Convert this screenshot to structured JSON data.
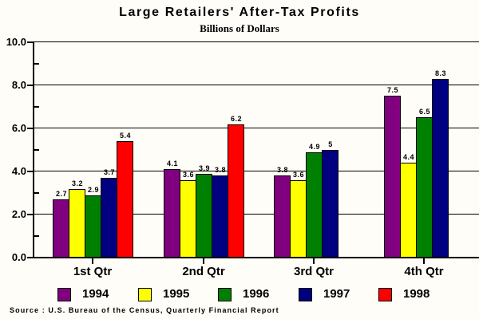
{
  "title": "Large Retailers' After-Tax Profits",
  "subtitle": "Billions of Dollars",
  "source": "Source : U.S. Bureau of the Census, Quarterly Financial Report",
  "chart_data": {
    "type": "bar",
    "categories": [
      "1st Qtr",
      "2nd Qtr",
      "3rd Qtr",
      "4th Qtr"
    ],
    "series": [
      {
        "name": "1994",
        "color": "#800080",
        "values": [
          2.7,
          4.1,
          3.8,
          7.5
        ]
      },
      {
        "name": "1995",
        "color": "#FFFF00",
        "values": [
          3.2,
          3.6,
          3.6,
          4.4
        ]
      },
      {
        "name": "1996",
        "color": "#008000",
        "values": [
          2.9,
          3.9,
          4.9,
          6.5
        ]
      },
      {
        "name": "1997",
        "color": "#000080",
        "values": [
          3.7,
          3.8,
          5,
          8.3
        ]
      },
      {
        "name": "1998",
        "color": "#FF0000",
        "values": [
          5.4,
          6.2,
          null,
          null
        ]
      }
    ],
    "title": "Large Retailers' After-Tax Profits",
    "subtitle": "Billions of Dollars",
    "xlabel": "",
    "ylabel": "Billions of Dollars",
    "ylim": [
      0,
      10
    ],
    "y_major_tick_labels": [
      "0.0",
      "2.0",
      "4.0",
      "6.0",
      "8.0",
      "10.0"
    ],
    "y_minor_ticks": [
      1,
      3,
      5,
      7,
      9
    ],
    "grid": true,
    "bar_value_labels": true,
    "legend_position": "bottom",
    "missing_values_note": "1998 has no bars for 3rd Qtr and 4th Qtr"
  }
}
